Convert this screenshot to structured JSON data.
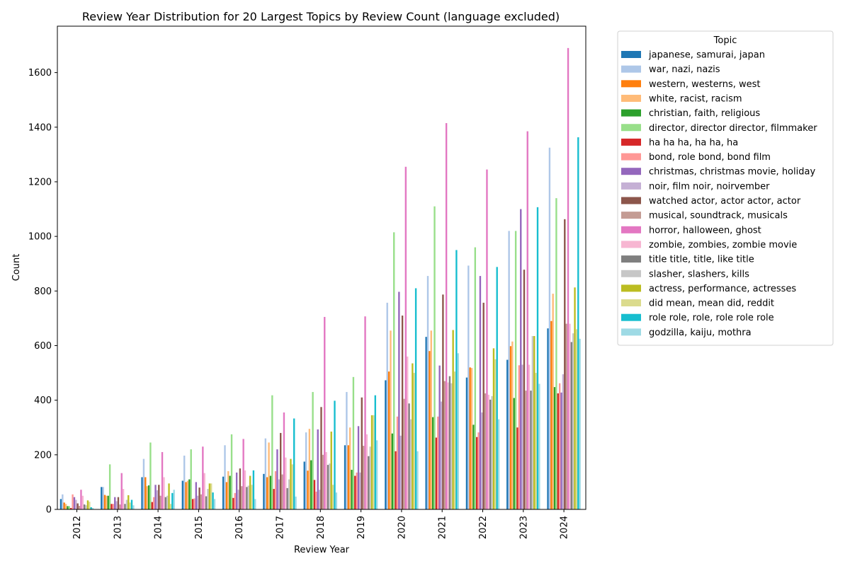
{
  "chart_data": {
    "type": "bar",
    "title": "Review Year Distribution for 20 Largest Topics by Review Count (language excluded)",
    "xlabel": "Review Year",
    "ylabel": "Count",
    "ylim": [
      0,
      1770
    ],
    "yticks": [
      0,
      200,
      400,
      600,
      800,
      1000,
      1200,
      1400,
      1600
    ],
    "categories": [
      "2012",
      "2013",
      "2014",
      "2015",
      "2016",
      "2017",
      "2018",
      "2019",
      "2020",
      "2021",
      "2022",
      "2023",
      "2024"
    ],
    "legend_title": "Topic",
    "legend_position": "outside right",
    "series": [
      {
        "name": "japanese, samurai, japan",
        "color": "#1f77b4",
        "values": [
          38,
          82,
          118,
          105,
          120,
          130,
          175,
          235,
          473,
          632,
          483,
          548,
          663
        ]
      },
      {
        "name": "war, nazi, nazis",
        "color": "#aec7e8",
        "values": [
          55,
          82,
          185,
          197,
          235,
          260,
          282,
          430,
          757,
          855,
          893,
          1020,
          1325
        ]
      },
      {
        "name": "western, westerns, west",
        "color": "#ff7f0e",
        "values": [
          25,
          53,
          118,
          100,
          100,
          118,
          142,
          235,
          505,
          580,
          520,
          598,
          690
        ]
      },
      {
        "name": "white, racist, racism",
        "color": "#ffbb78",
        "values": [
          20,
          50,
          85,
          105,
          140,
          245,
          295,
          300,
          655,
          655,
          518,
          615,
          790
        ]
      },
      {
        "name": "christian, faith, religious",
        "color": "#2ca02c",
        "values": [
          12,
          50,
          88,
          110,
          123,
          123,
          180,
          145,
          278,
          338,
          310,
          408,
          448
        ]
      },
      {
        "name": "director, director director, filmmaker",
        "color": "#98df8a",
        "values": [
          12,
          165,
          245,
          220,
          275,
          418,
          430,
          485,
          1015,
          1110,
          960,
          1020,
          1140
        ]
      },
      {
        "name": "ha ha ha, ha ha, ha",
        "color": "#d62728",
        "values": [
          5,
          20,
          27,
          38,
          42,
          75,
          108,
          123,
          213,
          263,
          265,
          300,
          425
        ]
      },
      {
        "name": "bond, role bond, bond film",
        "color": "#ff9896",
        "values": [
          55,
          20,
          45,
          40,
          60,
          140,
          65,
          135,
          340,
          340,
          282,
          528,
          462
        ]
      },
      {
        "name": "christmas, christmas movie, holiday",
        "color": "#9467bd",
        "values": [
          45,
          45,
          90,
          100,
          135,
          220,
          293,
          305,
          797,
          527,
          855,
          1100,
          428
        ]
      },
      {
        "name": "noir, film noir, noirvember",
        "color": "#c5b0d5",
        "values": [
          35,
          30,
          70,
          50,
          72,
          110,
          72,
          135,
          270,
          395,
          355,
          530,
          495
        ]
      },
      {
        "name": "watched actor, actor actor, actor",
        "color": "#8c564b",
        "values": [
          22,
          45,
          90,
          80,
          150,
          280,
          375,
          410,
          710,
          787,
          757,
          878,
          1063
        ]
      },
      {
        "name": "musical, soundtrack, musicals",
        "color": "#c49c94",
        "values": [
          13,
          18,
          50,
          55,
          85,
          128,
          200,
          233,
          405,
          470,
          425,
          435,
          680
        ]
      },
      {
        "name": "horror, halloween, ghost",
        "color": "#e377c2",
        "values": [
          72,
          133,
          210,
          230,
          258,
          355,
          705,
          707,
          1255,
          1415,
          1245,
          1385,
          1690
        ]
      },
      {
        "name": "zombie, zombies, zombie movie",
        "color": "#f7b6d2",
        "values": [
          50,
          75,
          118,
          133,
          143,
          190,
          210,
          275,
          560,
          465,
          420,
          530,
          680
        ]
      },
      {
        "name": "title title, title, like title",
        "color": "#7f7f7f",
        "values": [
          18,
          20,
          45,
          48,
          82,
          78,
          163,
          195,
          388,
          488,
          402,
          435,
          613
        ]
      },
      {
        "name": "slasher, slashers, kills",
        "color": "#c7c7c7",
        "values": [
          15,
          35,
          50,
          75,
          87,
          110,
          168,
          230,
          330,
          462,
          415,
          635,
          645
        ]
      },
      {
        "name": "actress, performance, actresses",
        "color": "#bcbd22",
        "values": [
          33,
          52,
          95,
          95,
          123,
          185,
          285,
          345,
          535,
          657,
          590,
          635,
          813
        ]
      },
      {
        "name": "did mean, mean did, reddit",
        "color": "#dbdb8d",
        "values": [
          28,
          25,
          20,
          95,
          90,
          165,
          90,
          345,
          500,
          505,
          550,
          500,
          660
        ]
      },
      {
        "name": "role role, role, role role role",
        "color": "#17becf",
        "values": [
          8,
          35,
          60,
          62,
          143,
          333,
          398,
          418,
          810,
          950,
          888,
          1107,
          1363
        ]
      },
      {
        "name": "godzilla, kaiju, mothra",
        "color": "#9edae5",
        "values": [
          5,
          15,
          72,
          38,
          38,
          47,
          62,
          253,
          213,
          572,
          330,
          460,
          625
        ]
      }
    ]
  }
}
